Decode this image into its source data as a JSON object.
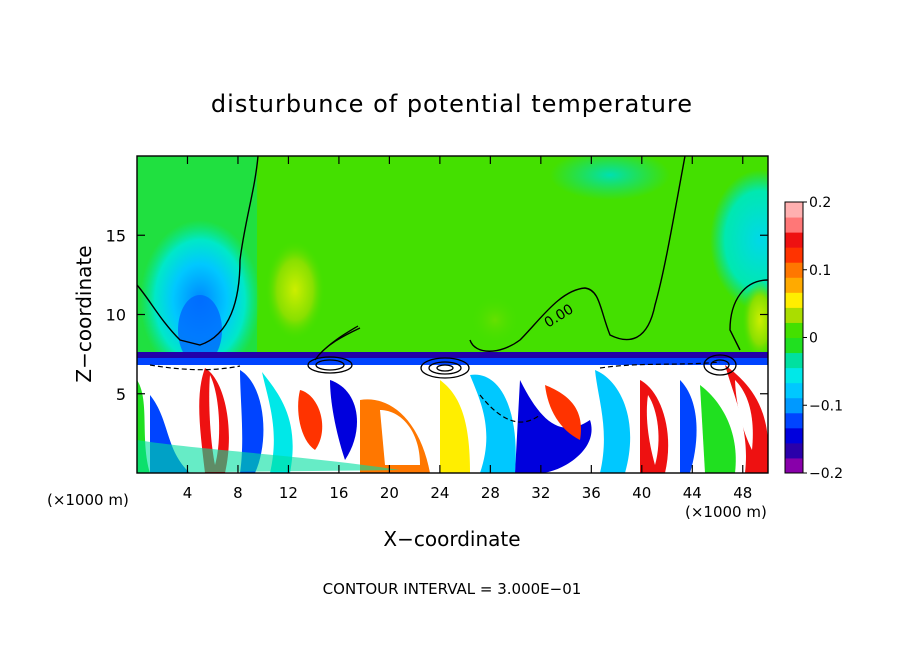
{
  "chart_data": {
    "type": "heatmap",
    "title": "disturbunce of potential temperature",
    "xlabel": "X−coordinate",
    "ylabel": "Z−coordinate",
    "x_unit_left": "(×1000 m)",
    "x_unit_right": "(×1000 m)",
    "xlim": [
      0,
      50
    ],
    "ylim": [
      0,
      20
    ],
    "x_ticks": [
      4,
      8,
      12,
      16,
      20,
      24,
      28,
      32,
      36,
      40,
      44,
      48
    ],
    "x_tick_labels": [
      "4",
      "8",
      "12",
      "16",
      "20",
      "24",
      "28",
      "32",
      "36",
      "40",
      "44",
      "48"
    ],
    "y_ticks": [
      5,
      10,
      15
    ],
    "y_tick_labels": [
      "5",
      "10",
      "15"
    ],
    "colorbar": {
      "min": -0.2,
      "max": 0.2,
      "ticks": [
        0.2,
        0.1,
        0,
        -0.1,
        -0.2
      ],
      "tick_labels": [
        "0.2",
        "0.1",
        "0",
        "−0.1",
        "−0.2"
      ],
      "colors": [
        "#8800aa",
        "#2a00aa",
        "#0000dd",
        "#0044ff",
        "#0099ff",
        "#00c8ff",
        "#00e8e8",
        "#00e0a0",
        "#20e020",
        "#44e000",
        "#aadd00",
        "#ffee00",
        "#ffaa00",
        "#ff7700",
        "#ff3300",
        "#ee1111",
        "#ff7777",
        "#ffb0b0"
      ]
    },
    "contour_label": "0.00",
    "footer": "CONTOUR INTERVAL = 3.000E−01",
    "grid": false
  }
}
